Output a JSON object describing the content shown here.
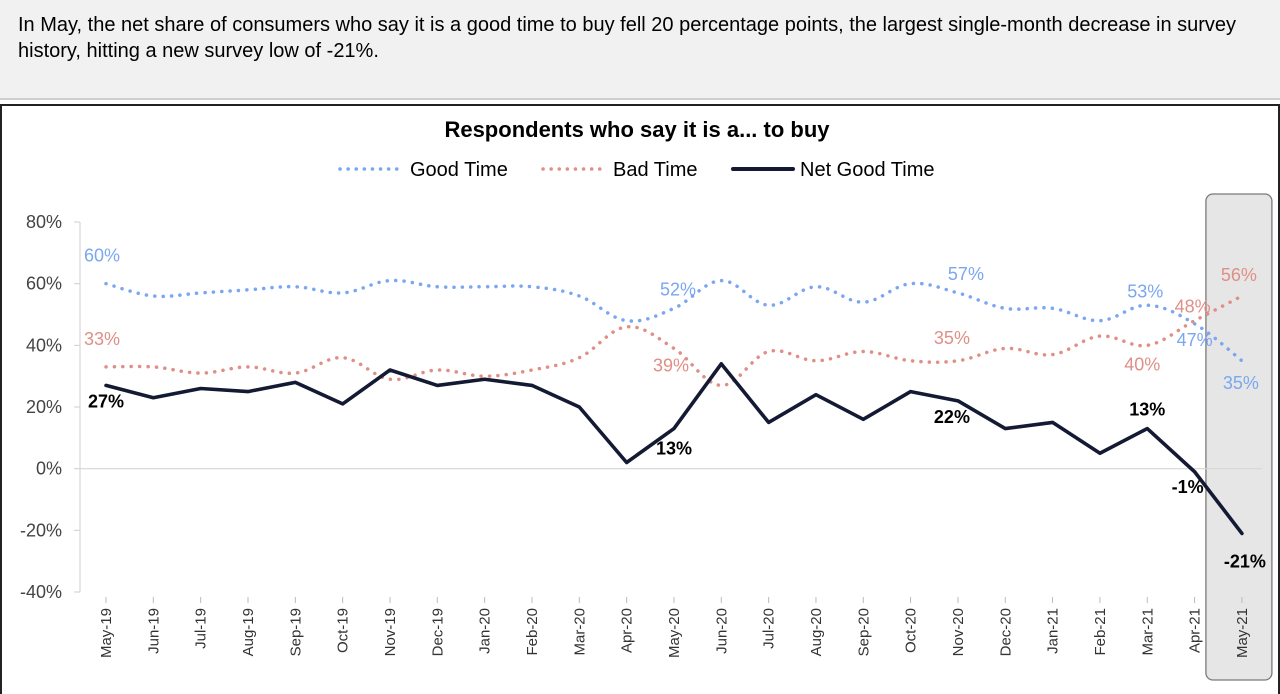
{
  "header": {
    "text": "In May, the net share of consumers who say it is a good time to buy fell 20 percentage points, the largest single-month decrease in survey history, hitting a new survey low of -21%."
  },
  "colors": {
    "good": "#7aa7f0",
    "bad": "#df8f86",
    "net": "#141a33",
    "highlight": "#e6e6e6"
  },
  "chart_data": {
    "type": "line",
    "title": "Respondents who say it is a... to buy",
    "legend_position": "top-center",
    "categories": [
      "May-19",
      "Jun-19",
      "Jul-19",
      "Aug-19",
      "Sep-19",
      "Oct-19",
      "Nov-19",
      "Dec-19",
      "Jan-20",
      "Feb-20",
      "Mar-20",
      "Apr-20",
      "May-20",
      "Jun-20",
      "Jul-20",
      "Aug-20",
      "Sep-20",
      "Oct-20",
      "Nov-20",
      "Dec-20",
      "Jan-21",
      "Feb-21",
      "Mar-21",
      "Apr-21",
      "May-21"
    ],
    "ylim": [
      -40,
      80
    ],
    "yticks": [
      "80%",
      "60%",
      "40%",
      "20%",
      "0%",
      "-20%",
      "-40%"
    ],
    "ytick_values": [
      80,
      60,
      40,
      20,
      0,
      -20,
      -40
    ],
    "highlight_category": "May-21",
    "series": [
      {
        "name": "Good Time",
        "style": "dotted",
        "values": [
          60,
          56,
          57,
          58,
          59,
          57,
          61,
          59,
          59,
          59,
          56,
          48,
          52,
          61,
          53,
          59,
          54,
          60,
          57,
          52,
          52,
          48,
          53,
          47,
          35
        ]
      },
      {
        "name": "Bad Time",
        "style": "dotted",
        "values": [
          33,
          33,
          31,
          33,
          31,
          36,
          29,
          32,
          30,
          32,
          36,
          46,
          39,
          27,
          38,
          35,
          38,
          35,
          35,
          39,
          37,
          43,
          40,
          48,
          56
        ]
      },
      {
        "name": "Net Good Time",
        "style": "solid",
        "values": [
          27,
          23,
          26,
          25,
          28,
          21,
          32,
          27,
          29,
          27,
          20,
          2,
          13,
          34,
          15,
          24,
          16,
          25,
          22,
          13,
          15,
          5,
          13,
          -1,
          -21
        ]
      }
    ],
    "annotations": [
      {
        "series": "Good Time",
        "index": 0,
        "text": "60%"
      },
      {
        "series": "Good Time",
        "index": 12,
        "text": "52%"
      },
      {
        "series": "Good Time",
        "index": 18,
        "text": "57%"
      },
      {
        "series": "Good Time",
        "index": 22,
        "text": "53%"
      },
      {
        "series": "Good Time",
        "index": 23,
        "text": "47%"
      },
      {
        "series": "Good Time",
        "index": 24,
        "text": "35%"
      },
      {
        "series": "Bad Time",
        "index": 0,
        "text": "33%"
      },
      {
        "series": "Bad Time",
        "index": 12,
        "text": "39%"
      },
      {
        "series": "Bad Time",
        "index": 18,
        "text": "35%"
      },
      {
        "series": "Bad Time",
        "index": 22,
        "text": "40%"
      },
      {
        "series": "Bad Time",
        "index": 23,
        "text": "48%"
      },
      {
        "series": "Bad Time",
        "index": 24,
        "text": "56%"
      },
      {
        "series": "Net Good Time",
        "index": 0,
        "text": "27%"
      },
      {
        "series": "Net Good Time",
        "index": 12,
        "text": "13%"
      },
      {
        "series": "Net Good Time",
        "index": 18,
        "text": "22%"
      },
      {
        "series": "Net Good Time",
        "index": 22,
        "text": "13%"
      },
      {
        "series": "Net Good Time",
        "index": 23,
        "text": "-1%"
      },
      {
        "series": "Net Good Time",
        "index": 24,
        "text": "-21%"
      }
    ]
  }
}
